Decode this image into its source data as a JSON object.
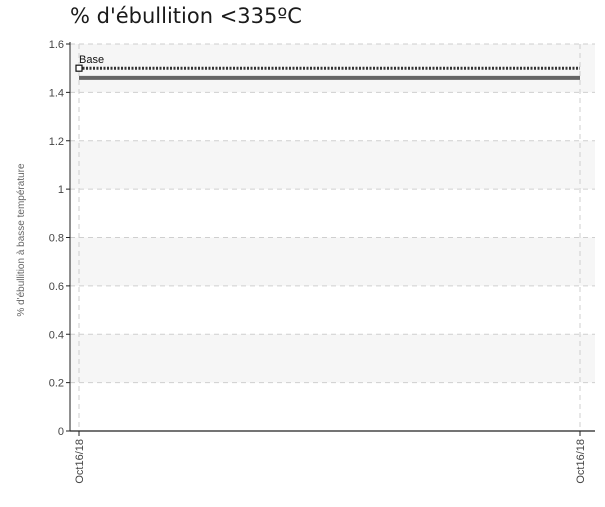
{
  "title": "% d'ébullition <335ºC",
  "chart_data": {
    "type": "line",
    "title": "% d'ébullition <335ºC",
    "xlabel": "",
    "ylabel": "% d'ébullition à basse température",
    "ylim": [
      0,
      1.6
    ],
    "yticks": [
      "0",
      "0.2",
      "0.4",
      "0.6",
      "0.8",
      "1",
      "1.2",
      "1.4",
      "1.6"
    ],
    "x": [
      "Oct16/18",
      "Oct16/18"
    ],
    "series": [
      {
        "name": "Base",
        "style": "dotted",
        "color": "#333333",
        "values": [
          1.5,
          1.5
        ]
      },
      {
        "name": "",
        "style": "solid",
        "color": "#666666",
        "values": [
          1.46,
          1.46
        ]
      }
    ],
    "grid": true,
    "legend": "inline-left"
  }
}
